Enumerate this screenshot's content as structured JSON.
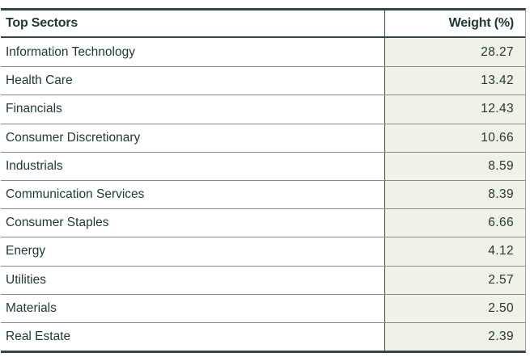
{
  "table": {
    "columns": [
      {
        "label": "Top Sectors",
        "align": "left"
      },
      {
        "label": "Weight (%)",
        "align": "right"
      }
    ],
    "rows": [
      {
        "sector": "Information Technology",
        "weight": "28.27"
      },
      {
        "sector": "Health Care",
        "weight": "13.42"
      },
      {
        "sector": "Financials",
        "weight": "12.43"
      },
      {
        "sector": "Consumer Discretionary",
        "weight": "10.66"
      },
      {
        "sector": "Industrials",
        "weight": "8.59"
      },
      {
        "sector": "Communication Services",
        "weight": "8.39"
      },
      {
        "sector": "Consumer Staples",
        "weight": "6.66"
      },
      {
        "sector": "Energy",
        "weight": "4.12"
      },
      {
        "sector": "Utilities",
        "weight": "2.57"
      },
      {
        "sector": "Materials",
        "weight": "2.50"
      },
      {
        "sector": "Real Estate",
        "weight": "2.39"
      }
    ],
    "colors": {
      "border_dark": "#33453d",
      "row_separator": "#828f88",
      "weight_cell_background": "#f0f1e7",
      "text": "#1f3831"
    }
  }
}
